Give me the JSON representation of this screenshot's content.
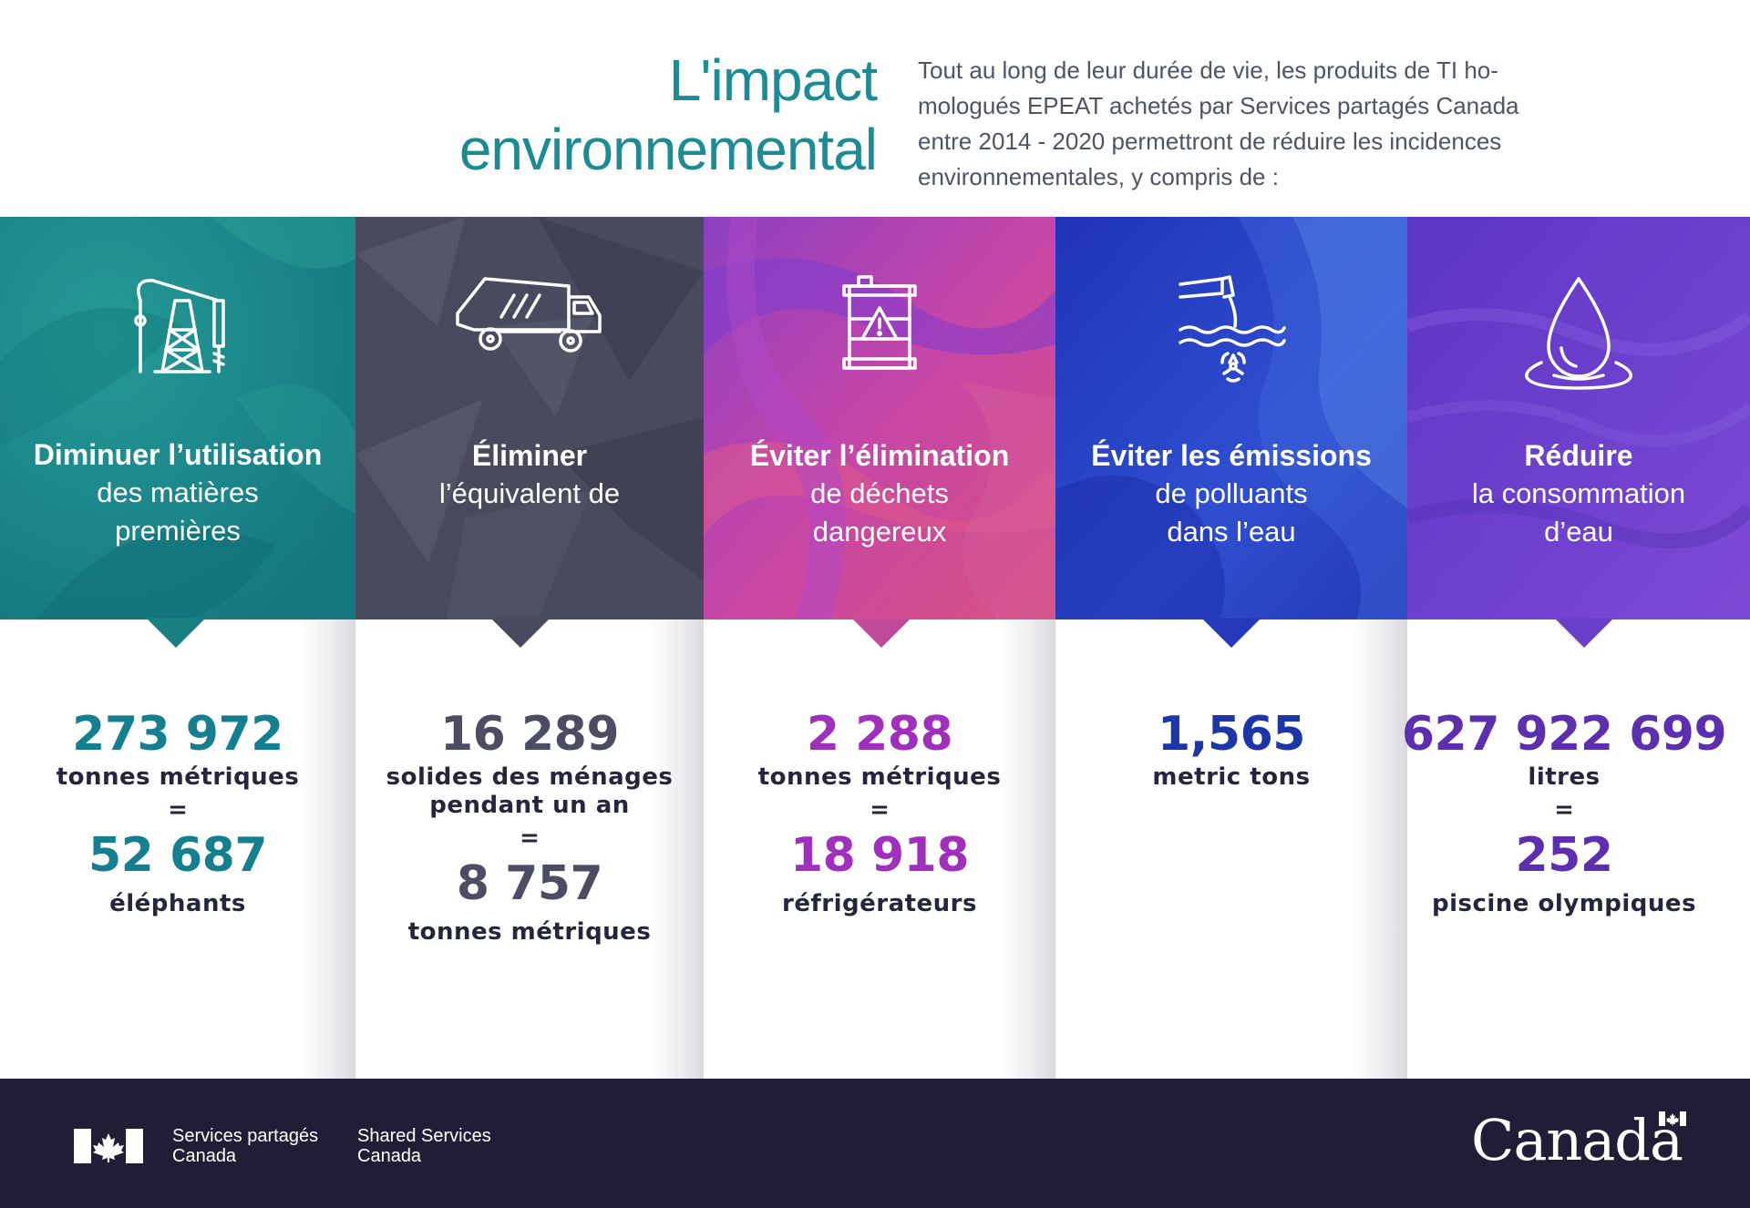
{
  "header": {
    "title_line1": "L'impact",
    "title_line2": "environnemental",
    "intro_line1": "Tout au long de leur durée de vie, les produits de TI ho-",
    "intro_line2": "mologués EPEAT achetés par Services partagés Canada",
    "intro_line3": "entre 2014 - 2020 permettront de réduire les incidences",
    "intro_line4": "environnementales, y compris de :"
  },
  "colors": {
    "teal": "#1d8a8f",
    "slate": "#4a4a5e",
    "magenta": "#a33bb8",
    "blue": "#2c47c8",
    "violet": "#6a3fc9",
    "stat_teal": "#137f91",
    "stat_slate": "#4c4c62",
    "stat_magenta": "#a02fbe",
    "stat_blue": "#1c35a8",
    "stat_violet": "#5b2fb0",
    "footer": "#1f1e36"
  },
  "columns": [
    {
      "icon": "oil-pump-icon",
      "heading_bold": "Diminuer l’utilisation",
      "heading_line2": "des matières",
      "heading_line3": "premières",
      "value1": "273 972",
      "label1": "tonnes métriques",
      "equals": "=",
      "value2": "52 687",
      "label2": "éléphants"
    },
    {
      "icon": "garbage-truck-icon",
      "heading_bold": "Éliminer",
      "heading_line2": "l’équivalent de",
      "value1": "16 289",
      "label1a": "solides des ménages",
      "label1b": "pendant un an",
      "equals": "=",
      "value2": "8 757",
      "label2": "tonnes métriques"
    },
    {
      "icon": "hazard-barrel-icon",
      "heading_bold": "Éviter l’élimination",
      "heading_line2": "de déchets",
      "heading_line3": "dangereux",
      "value1": "2 288",
      "label1": "tonnes métriques",
      "equals": "=",
      "value2": "18 918",
      "label2": "réfrigérateurs"
    },
    {
      "icon": "polluted-water-pipe-icon",
      "heading_bold": "Éviter les émissions",
      "heading_line2": "de polluants",
      "heading_line3": "dans l’eau",
      "value1": "1,565",
      "label1": "metric tons"
    },
    {
      "icon": "water-drop-icon",
      "heading_bold": "Réduire",
      "heading_line2": "la consommation",
      "heading_line3": "d’eau",
      "value1": "627 922 699",
      "label1": "litres",
      "equals": "=",
      "value2": "252",
      "label2": "piscine olympiques"
    }
  ],
  "footer": {
    "sig_fr_line1": "Services partagés",
    "sig_fr_line2": "Canada",
    "sig_en_line1": "Shared Services",
    "sig_en_line2": "Canada",
    "wordmark": "Canada"
  }
}
